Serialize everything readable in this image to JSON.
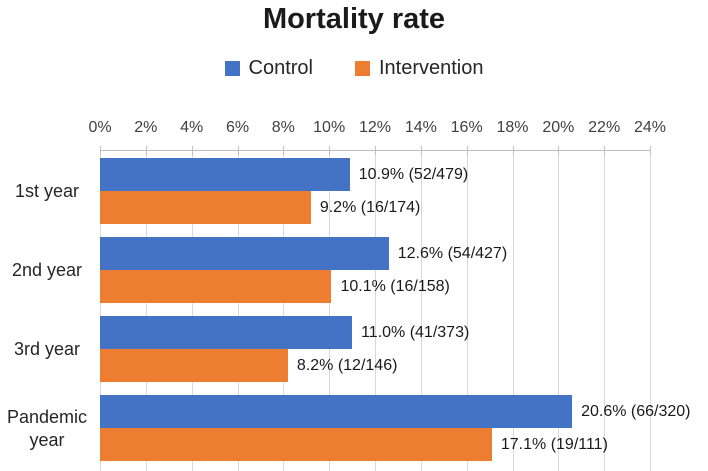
{
  "chart_data": {
    "type": "bar",
    "orientation": "horizontal",
    "title": "Mortality rate",
    "categories": [
      "1st year",
      "2nd year",
      "3rd year",
      "Pandemic year"
    ],
    "series": [
      {
        "name": "Control",
        "color": "#4472C4",
        "values": [
          10.9,
          12.6,
          11.0,
          20.6
        ],
        "labels": [
          "10.9% (52/479)",
          "12.6% (54/427)",
          "11.0% (41/373)",
          "20.6% (66/320)"
        ]
      },
      {
        "name": "Intervention",
        "color": "#ED7D31",
        "values": [
          9.2,
          10.1,
          8.2,
          17.1
        ],
        "labels": [
          "9.2% (16/174)",
          "10.1% (16/158)",
          "8.2% (12/146)",
          "17.1% (19/111)"
        ]
      }
    ],
    "x_axis": {
      "position": "top",
      "min": 0,
      "max": 24,
      "tick_step": 2,
      "tick_labels": [
        "0%",
        "2%",
        "4%",
        "6%",
        "8%",
        "10%",
        "12%",
        "14%",
        "16%",
        "18%",
        "20%",
        "22%",
        "24%"
      ]
    },
    "legend_position": "top",
    "grid": true,
    "colors": {
      "gridline": "#d9d9d9",
      "axis_line": "#bfbfbf",
      "tick_text": "#404040",
      "label_text": "#1a1a1a",
      "background": "#ffffff"
    }
  }
}
